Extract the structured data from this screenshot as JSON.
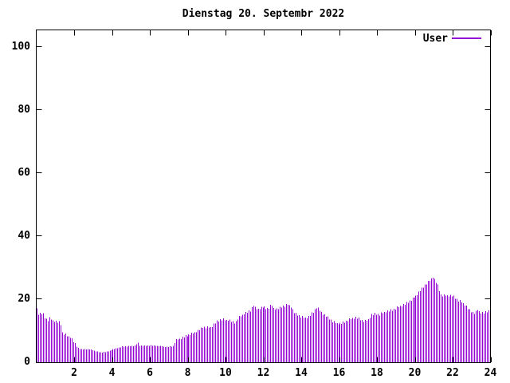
{
  "window": {
    "background": "#ffffff",
    "text_color": "#000000"
  },
  "chart_data": {
    "type": "bar",
    "style": "impulses",
    "title": "Dienstag 20. Septembr 2022",
    "xlabel": "",
    "ylabel": "",
    "legend": {
      "label": "User",
      "position": "top-right"
    },
    "series_color": "#9400d3",
    "border_color": "#000000",
    "xlim": [
      0,
      24
    ],
    "ylim": [
      0,
      105.5
    ],
    "xticks": [
      2,
      4,
      6,
      8,
      10,
      12,
      14,
      16,
      18,
      20,
      22,
      24
    ],
    "yticks": [
      0,
      20,
      40,
      60,
      80,
      100
    ],
    "grid": false,
    "x_unit": "hour_of_day",
    "sample_interval_minutes": 5,
    "envelope_points": [
      [
        0.04,
        17
      ],
      [
        0.12,
        15.2
      ],
      [
        0.25,
        15.3
      ],
      [
        0.38,
        15
      ],
      [
        0.5,
        13.6
      ],
      [
        0.62,
        13.2
      ],
      [
        0.72,
        14
      ],
      [
        0.85,
        13.2
      ],
      [
        1.0,
        12.8
      ],
      [
        1.15,
        12.6
      ],
      [
        1.28,
        12.4
      ],
      [
        1.36,
        9.2
      ],
      [
        1.5,
        8.8
      ],
      [
        1.65,
        8.2
      ],
      [
        1.8,
        7.8
      ],
      [
        1.9,
        7
      ],
      [
        2.0,
        6
      ],
      [
        2.1,
        5
      ],
      [
        2.2,
        4.4
      ],
      [
        2.35,
        4
      ],
      [
        2.6,
        4
      ],
      [
        2.85,
        3.9
      ],
      [
        3.05,
        3.5
      ],
      [
        3.25,
        3.1
      ],
      [
        3.5,
        3
      ],
      [
        3.7,
        3.2
      ],
      [
        3.9,
        3.6
      ],
      [
        4.1,
        4.1
      ],
      [
        4.3,
        4.4
      ],
      [
        4.55,
        4.8
      ],
      [
        4.9,
        5
      ],
      [
        5.25,
        5.1
      ],
      [
        5.33,
        6.3
      ],
      [
        5.42,
        5.1
      ],
      [
        5.7,
        5.1
      ],
      [
        6.0,
        5.2
      ],
      [
        6.3,
        5.1
      ],
      [
        6.6,
        5
      ],
      [
        6.8,
        4.7
      ],
      [
        7.0,
        4.8
      ],
      [
        7.22,
        5
      ],
      [
        7.32,
        6.8
      ],
      [
        7.5,
        7.3
      ],
      [
        7.7,
        7.7
      ],
      [
        7.9,
        8.2
      ],
      [
        8.1,
        8.7
      ],
      [
        8.3,
        9.2
      ],
      [
        8.5,
        9.7
      ],
      [
        8.65,
        10.3
      ],
      [
        8.8,
        11
      ],
      [
        9.25,
        11
      ],
      [
        9.4,
        12
      ],
      [
        9.55,
        12.8
      ],
      [
        9.7,
        13.3
      ],
      [
        9.85,
        13.6
      ],
      [
        10.0,
        13.2
      ],
      [
        10.15,
        13.4
      ],
      [
        10.35,
        12.6
      ],
      [
        10.5,
        12.3
      ],
      [
        10.65,
        14
      ],
      [
        10.85,
        14.8
      ],
      [
        11.0,
        15.5
      ],
      [
        11.15,
        15.8
      ],
      [
        11.3,
        16.2
      ],
      [
        11.45,
        18.2
      ],
      [
        11.55,
        17
      ],
      [
        11.7,
        16.8
      ],
      [
        11.85,
        17.2
      ],
      [
        12.0,
        17.4
      ],
      [
        12.15,
        16.8
      ],
      [
        12.3,
        17.2
      ],
      [
        12.42,
        18.2
      ],
      [
        12.55,
        17
      ],
      [
        12.7,
        16.7
      ],
      [
        12.85,
        17
      ],
      [
        13.0,
        17.6
      ],
      [
        13.15,
        17.8
      ],
      [
        13.3,
        18.3
      ],
      [
        13.45,
        17.6
      ],
      [
        13.6,
        15.8
      ],
      [
        13.75,
        15
      ],
      [
        13.9,
        14.6
      ],
      [
        14.05,
        14.2
      ],
      [
        14.2,
        14
      ],
      [
        14.35,
        14.2
      ],
      [
        14.5,
        15
      ],
      [
        14.65,
        16
      ],
      [
        14.8,
        17.3
      ],
      [
        14.95,
        16.4
      ],
      [
        15.1,
        15.4
      ],
      [
        15.25,
        14.6
      ],
      [
        15.4,
        14
      ],
      [
        15.55,
        13.2
      ],
      [
        15.7,
        12.6
      ],
      [
        15.9,
        12.2
      ],
      [
        16.1,
        12.1
      ],
      [
        16.3,
        12.6
      ],
      [
        16.5,
        13.4
      ],
      [
        16.7,
        13.9
      ],
      [
        16.9,
        14
      ],
      [
        17.05,
        13.6
      ],
      [
        17.2,
        13.1
      ],
      [
        17.4,
        13
      ],
      [
        17.55,
        13.6
      ],
      [
        17.7,
        14.9
      ],
      [
        17.9,
        15.2
      ],
      [
        18.1,
        15
      ],
      [
        18.3,
        15.6
      ],
      [
        18.5,
        16
      ],
      [
        18.7,
        16.3
      ],
      [
        18.9,
        16.7
      ],
      [
        19.05,
        17.3
      ],
      [
        19.2,
        17.7
      ],
      [
        19.35,
        18
      ],
      [
        19.5,
        18.4
      ],
      [
        19.65,
        19
      ],
      [
        19.8,
        19.7
      ],
      [
        19.95,
        20.5
      ],
      [
        20.1,
        21.3
      ],
      [
        20.25,
        22.3
      ],
      [
        20.4,
        23.4
      ],
      [
        20.55,
        24.4
      ],
      [
        20.7,
        25.3
      ],
      [
        20.85,
        26.2
      ],
      [
        20.95,
        27
      ],
      [
        21.05,
        26
      ],
      [
        21.15,
        25
      ],
      [
        21.25,
        23.5
      ],
      [
        21.35,
        21.3
      ],
      [
        21.5,
        21
      ],
      [
        21.65,
        21.2
      ],
      [
        21.8,
        21
      ],
      [
        21.95,
        21
      ],
      [
        22.1,
        20.4
      ],
      [
        22.25,
        19.6
      ],
      [
        22.4,
        19.2
      ],
      [
        22.55,
        18.6
      ],
      [
        22.7,
        17.6
      ],
      [
        22.85,
        16.5
      ],
      [
        23.0,
        15.7
      ],
      [
        23.15,
        15.5
      ],
      [
        23.3,
        16.6
      ],
      [
        23.45,
        15.6
      ],
      [
        23.6,
        15.5
      ],
      [
        23.75,
        15.8
      ],
      [
        23.9,
        16.2
      ],
      [
        23.96,
        16.4
      ]
    ],
    "noise_pattern": [
      0,
      -0.3,
      0.25,
      -0.2,
      0.35,
      -0.25,
      0.15,
      -0.35,
      0.3,
      -0.15
    ]
  }
}
